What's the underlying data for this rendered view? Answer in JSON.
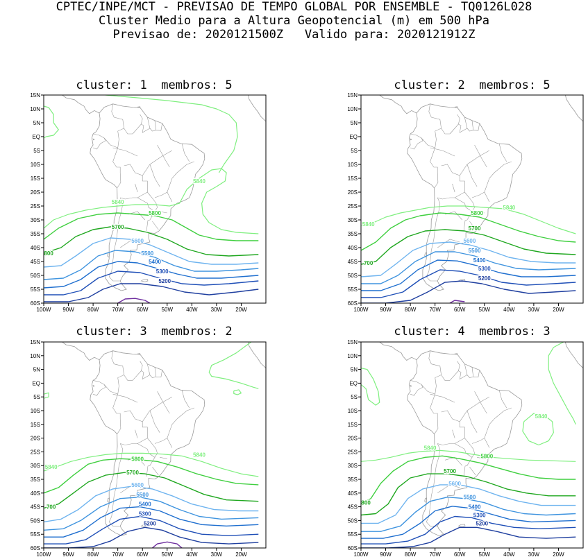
{
  "header": {
    "line1": "CPTEC/INPE/MCT - PREVISAO DE TEMPO GLOBAL POR ENSEMBLE - TQ0126L028",
    "line2": "Cluster Medio para a Altura Geopotencial (m) em 500 hPa",
    "line3": "Previsao de: 2020121500Z   Valido para: 2020121912Z"
  },
  "axes": {
    "lat_labels": [
      "15N",
      "10N",
      "5N",
      "EQ",
      "5S",
      "10S",
      "15S",
      "20S",
      "25S",
      "30S",
      "35S",
      "40S",
      "45S",
      "50S",
      "55S",
      "60S"
    ],
    "lon_labels": [
      "100W",
      "90W",
      "80W",
      "70W",
      "60W",
      "50W",
      "40W",
      "30W",
      "20W"
    ]
  },
  "colors": {
    "c5840": "#7fef7f",
    "c5800": "#3fcf3f",
    "c5700": "#1fa71f",
    "c5600": "#6fb4ef",
    "c5500": "#3f94df",
    "c5400": "#1f6fcf",
    "c5300": "#1f4fb7",
    "c5200": "#1f3f9f",
    "c5100": "#6f2f9f",
    "coast": "#9a9a9a"
  },
  "panels": [
    {
      "title": "cluster: 1  membros: 5",
      "labels": {
        "l5840a": "5840",
        "l5840b": "5840",
        "l5800": "5800",
        "l5700": "5700",
        "l5600": "5600",
        "l5500": "5500",
        "l5400": "5400",
        "l5300": "5300",
        "l5200": "5200",
        "lleft": "800"
      }
    },
    {
      "title": "cluster: 2  membros: 5",
      "labels": {
        "l5840a": "5840",
        "l5840b": "5840",
        "l5800": "5800",
        "l5700": "5700",
        "l5600": "5600",
        "l5500": "5500",
        "l5400": "5400",
        "l5300": "5300",
        "l5200": "5200",
        "lleft": "700"
      }
    },
    {
      "title": "cluster: 3  membros: 2",
      "labels": {
        "l5840a": "5840",
        "l5840b": "5840",
        "l5800": "5800",
        "l5700": "5700",
        "l5600": "5600",
        "l5500": "5500",
        "l5400": "5400",
        "l5300": "5300",
        "l5200": "5200",
        "lleft": "700"
      }
    },
    {
      "title": "cluster: 4  membros: 3",
      "labels": {
        "l5840a": "5840",
        "l5840b": "5840",
        "l5800": "5800",
        "l5700": "5700",
        "l5600": "5600",
        "l5500": "5500",
        "l5400": "5400",
        "l5300": "5300",
        "l5200": "5200",
        "lleft": "800"
      }
    }
  ]
}
